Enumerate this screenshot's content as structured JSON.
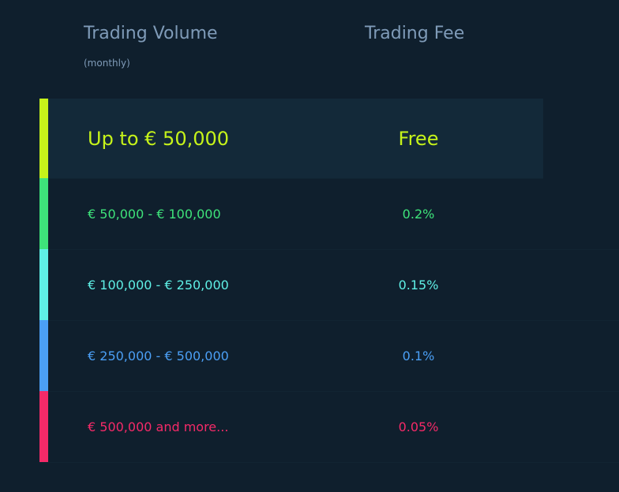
{
  "header": {
    "volume_label": "Trading Volume",
    "volume_sub": "(monthly)",
    "fee_label": "Trading Fee"
  },
  "tiers": [
    {
      "volume": "Up to € 50,000",
      "fee": "Free",
      "color": "#c6f31a"
    },
    {
      "volume": "€ 50,000 - € 100,000",
      "fee": "0.2%",
      "color": "#3ee37a"
    },
    {
      "volume": "€ 100,000 - € 250,000",
      "fee": "0.15%",
      "color": "#5ff0e6"
    },
    {
      "volume": "€ 250,000 - € 500,000",
      "fee": "0.1%",
      "color": "#4b9ff5"
    },
    {
      "volume": "€ 500,000 and more...",
      "fee": "0.05%",
      "color": "#f52a68"
    }
  ]
}
